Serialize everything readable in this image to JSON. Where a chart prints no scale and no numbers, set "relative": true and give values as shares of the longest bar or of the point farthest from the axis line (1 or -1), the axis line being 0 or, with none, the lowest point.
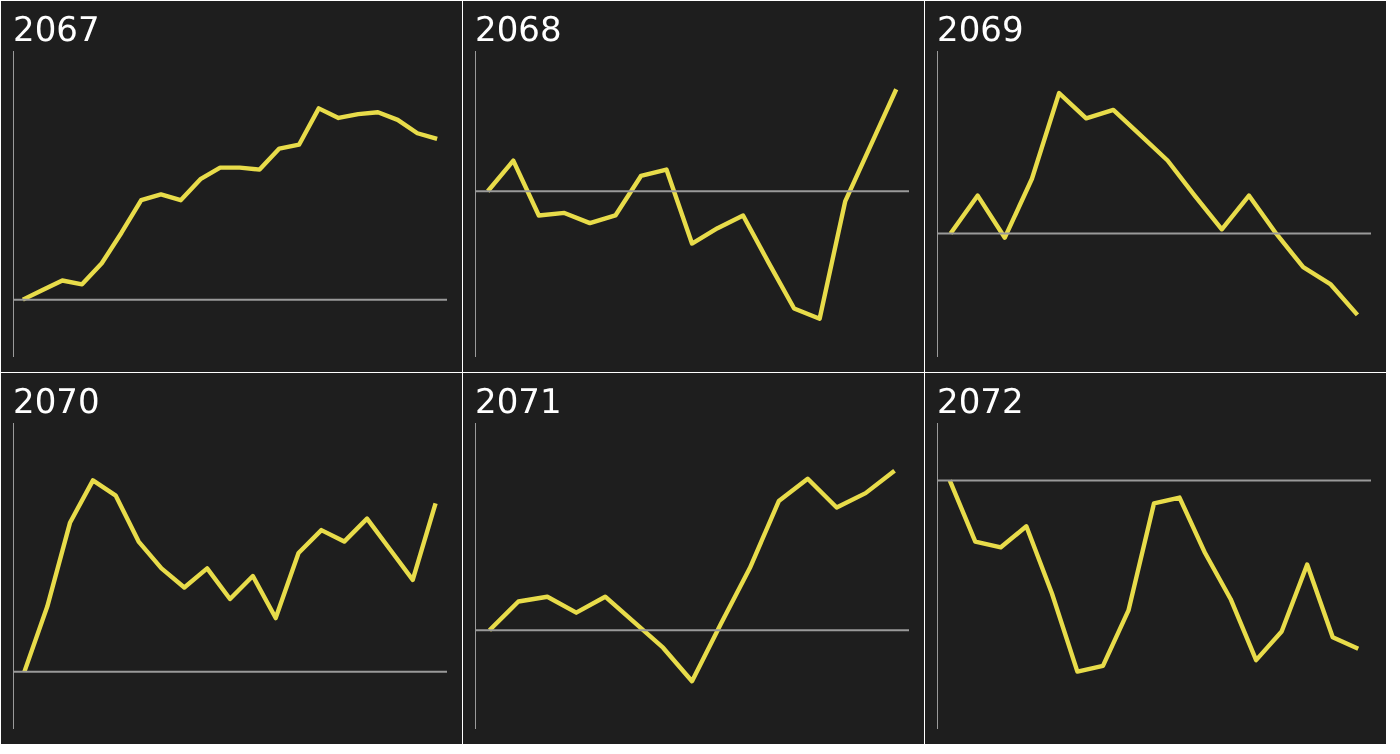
{
  "chart_data": [
    {
      "type": "line",
      "title": "2067",
      "relative": true,
      "categories": [
        null,
        null,
        null,
        null,
        null,
        null,
        null,
        null,
        null,
        null,
        null,
        null,
        null,
        null,
        null,
        null,
        null,
        null,
        null,
        null,
        null,
        null
      ],
      "series": [
        {
          "color": "#e8dc4a",
          "values": [
            0,
            0.05,
            0.1,
            0.08,
            0.19,
            0.35,
            0.52,
            0.55,
            0.52,
            0.63,
            0.69,
            0.69,
            0.68,
            0.79,
            0.81,
            1,
            0.95,
            0.97,
            0.98,
            0.94,
            0.87,
            0.84
          ]
        }
      ]
    },
    {
      "type": "line",
      "title": "2068",
      "relative": true,
      "categories": [
        null,
        null,
        null,
        null,
        null,
        null,
        null,
        null,
        null,
        null,
        null,
        null,
        null,
        null,
        null,
        null,
        null
      ],
      "series": [
        {
          "color": "#e8dc4a",
          "values": [
            0,
            0.24,
            -0.19,
            -0.17,
            -0.25,
            -0.19,
            0.12,
            0.17,
            -0.41,
            -0.29,
            -0.19,
            -0.56,
            -0.92,
            -1,
            -0.08,
            0.36,
            0.8
          ]
        }
      ]
    },
    {
      "type": "line",
      "title": "2069",
      "relative": true,
      "categories": [
        null,
        null,
        null,
        null,
        null,
        null,
        null,
        null,
        null,
        null,
        null,
        null,
        null,
        null,
        null,
        null
      ],
      "series": [
        {
          "color": "#e8dc4a",
          "values": [
            0,
            0.27,
            -0.03,
            0.39,
            1,
            0.82,
            0.88,
            0.7,
            0.52,
            0.27,
            0.03,
            0.27,
            0,
            -0.24,
            -0.36,
            -0.58
          ]
        }
      ]
    },
    {
      "type": "line",
      "title": "2070",
      "relative": true,
      "categories": [
        null,
        null,
        null,
        null,
        null,
        null,
        null,
        null,
        null,
        null,
        null,
        null,
        null,
        null,
        null,
        null,
        null,
        null,
        null
      ],
      "series": [
        {
          "color": "#e8dc4a",
          "values": [
            0,
            0.34,
            0.78,
            1,
            0.92,
            0.68,
            0.54,
            0.44,
            0.54,
            0.38,
            0.5,
            0.28,
            0.62,
            0.74,
            0.68,
            0.8,
            0.64,
            0.48,
            0.88
          ]
        }
      ]
    },
    {
      "type": "line",
      "title": "2071",
      "relative": true,
      "categories": [
        null,
        null,
        null,
        null,
        null,
        null,
        null,
        null,
        null,
        null,
        null,
        null,
        null,
        null,
        null
      ],
      "series": [
        {
          "color": "#e8dc4a",
          "values": [
            0,
            0.18,
            0.21,
            0.11,
            0.21,
            0.05,
            -0.11,
            -0.32,
            0.04,
            0.39,
            0.81,
            0.95,
            0.77,
            0.86,
            1
          ]
        }
      ]
    },
    {
      "type": "line",
      "title": "2072",
      "relative": true,
      "categories": [
        null,
        null,
        null,
        null,
        null,
        null,
        null,
        null,
        null,
        null,
        null,
        null,
        null,
        null,
        null,
        null,
        null
      ],
      "series": [
        {
          "color": "#e8dc4a",
          "values": [
            0,
            -0.32,
            -0.35,
            -0.24,
            -0.59,
            -1,
            -0.97,
            -0.68,
            -0.12,
            -0.09,
            -0.38,
            -0.62,
            -0.94,
            -0.79,
            -0.44,
            -0.82,
            -0.88
          ]
        }
      ]
    }
  ]
}
